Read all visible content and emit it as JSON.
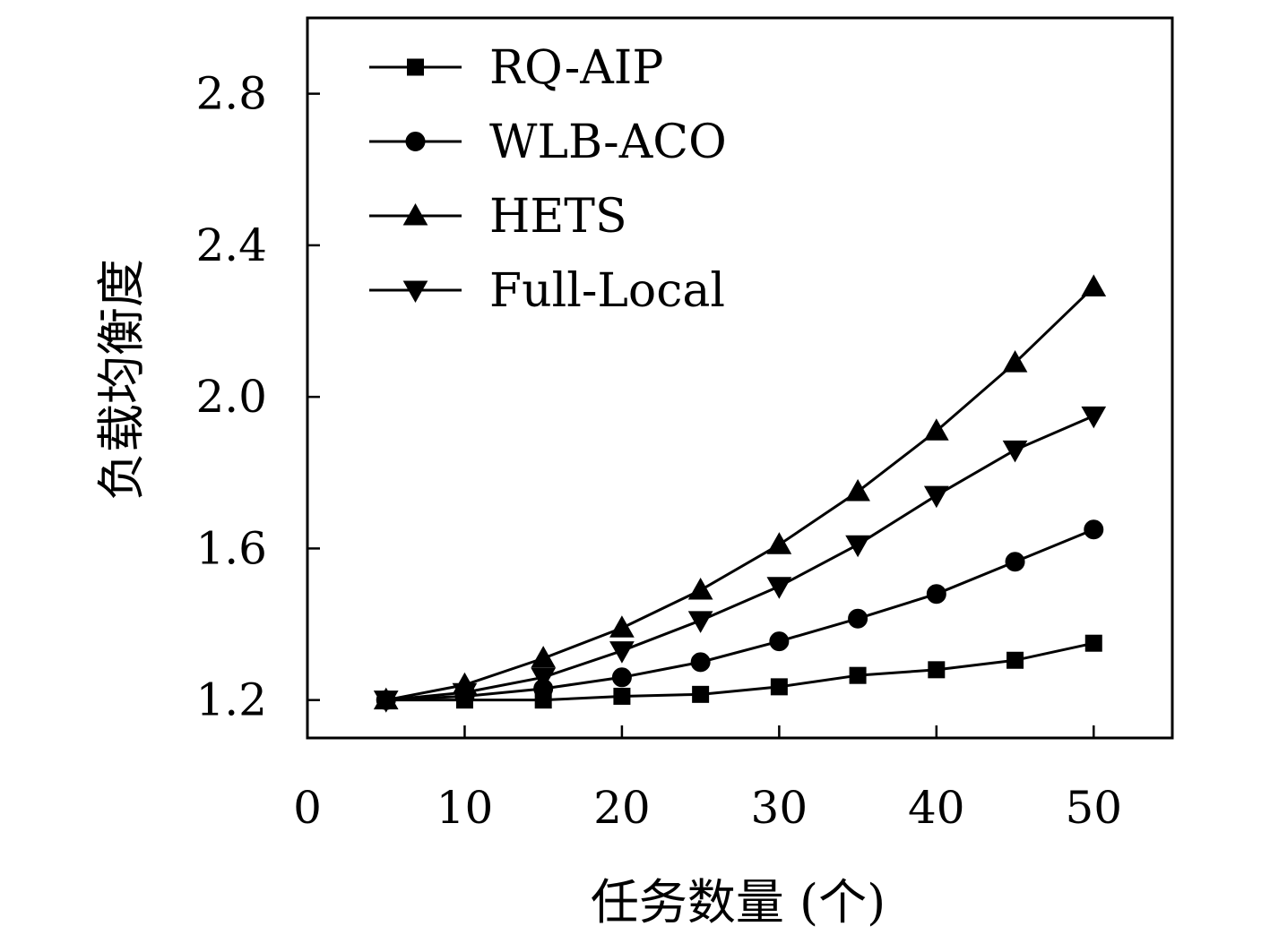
{
  "chart_data": {
    "type": "line",
    "xlabel": "任务数量 (个)",
    "ylabel": "负载均衡度",
    "xlim": [
      0,
      55
    ],
    "ylim": [
      1.1,
      3.0
    ],
    "x_ticks": [
      0,
      10,
      20,
      30,
      40,
      50
    ],
    "x_tick_labels": [
      "0",
      "10",
      "20",
      "30",
      "40",
      "50"
    ],
    "y_ticks": [
      1.2,
      1.6,
      2.0,
      2.4,
      2.8
    ],
    "y_tick_labels": [
      "1.2",
      "1.6",
      "2.0",
      "2.4",
      "2.8"
    ],
    "legend_position": "top-left",
    "grid": false,
    "x": [
      5,
      10,
      15,
      20,
      25,
      30,
      35,
      40,
      45,
      50
    ],
    "series": [
      {
        "name": "RQ-AIP",
        "marker": "square",
        "values": [
          1.2,
          1.2,
          1.2,
          1.21,
          1.215,
          1.235,
          1.265,
          1.28,
          1.305,
          1.35
        ]
      },
      {
        "name": "WLB-ACO",
        "marker": "circle",
        "values": [
          1.2,
          1.21,
          1.23,
          1.26,
          1.3,
          1.355,
          1.415,
          1.48,
          1.565,
          1.65
        ]
      },
      {
        "name": "HETS",
        "marker": "triangle-up",
        "values": [
          1.2,
          1.24,
          1.31,
          1.39,
          1.49,
          1.61,
          1.75,
          1.91,
          2.09,
          2.29
        ]
      },
      {
        "name": "Full-Local",
        "marker": "triangle-down",
        "values": [
          1.2,
          1.22,
          1.26,
          1.33,
          1.41,
          1.5,
          1.61,
          1.74,
          1.86,
          1.95
        ]
      }
    ],
    "line_color": "#000000"
  }
}
